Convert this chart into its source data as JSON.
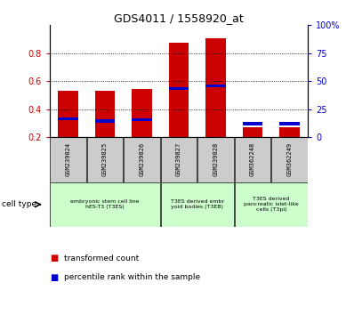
{
  "title": "GDS4011 / 1558920_at",
  "samples": [
    "GSM239824",
    "GSM239825",
    "GSM239826",
    "GSM239827",
    "GSM239828",
    "GSM362248",
    "GSM362249"
  ],
  "transformed_count": [
    0.53,
    0.53,
    0.545,
    0.875,
    0.905,
    0.27,
    0.27
  ],
  "percentile_rank": [
    0.32,
    0.305,
    0.315,
    0.535,
    0.555,
    0.285,
    0.285
  ],
  "bar_bottom": 0.2,
  "ylim_left": [
    0.2,
    1.0
  ],
  "yticks_left": [
    0.2,
    0.4,
    0.6,
    0.8
  ],
  "ytick_labels_left": [
    "0.2",
    "0.4",
    "0.6",
    "0.8"
  ],
  "yticks_right": [
    0,
    25,
    50,
    75,
    100
  ],
  "ytick_labels_right": [
    "0",
    "25",
    "50",
    "75",
    "100%"
  ],
  "color_red": "#cc0000",
  "color_blue": "#0000cc",
  "groups": [
    {
      "label": "embryonic stem cell line\nhES-T3 (T3ES)",
      "start": 0,
      "end": 2
    },
    {
      "label": "T3ES derived embr\nyoid bodies (T3EB)",
      "start": 3,
      "end": 4
    },
    {
      "label": "T3ES derived\npancreatic islet-like\ncells (T3pi)",
      "start": 5,
      "end": 6
    }
  ],
  "bar_width": 0.55,
  "sample_box_color": "#cccccc",
  "group_box_color": "#ccffcc"
}
